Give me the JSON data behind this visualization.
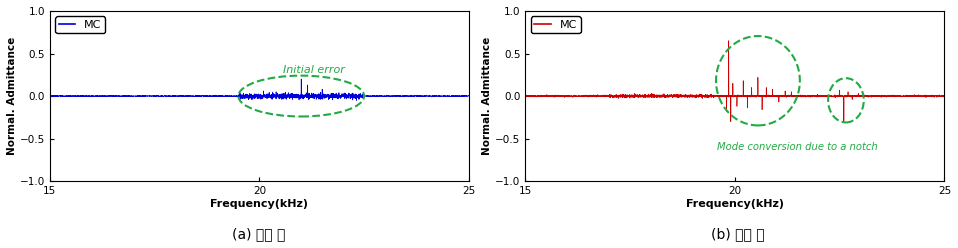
{
  "xlim": [
    15,
    25
  ],
  "ylim": [
    -1,
    1
  ],
  "xlabel": "Frequency(kHz)",
  "ylabel": "Normal. Admittance",
  "yticks": [
    -1,
    -0.5,
    0,
    0.5,
    1
  ],
  "xticks": [
    15,
    20,
    25
  ],
  "left_line_color": "#0000dd",
  "right_line_color": "#cc0000",
  "legend_label": "MC",
  "ellipse_color": "#22aa44",
  "left_annotation": "Initial error",
  "right_annotation": "Mode conversion due to a notch",
  "subtitle_left": "(a) 손상 전",
  "subtitle_right": "(b) 손상 후",
  "background_color": "#ffffff",
  "figsize": [
    9.58,
    2.48
  ],
  "dpi": 100
}
